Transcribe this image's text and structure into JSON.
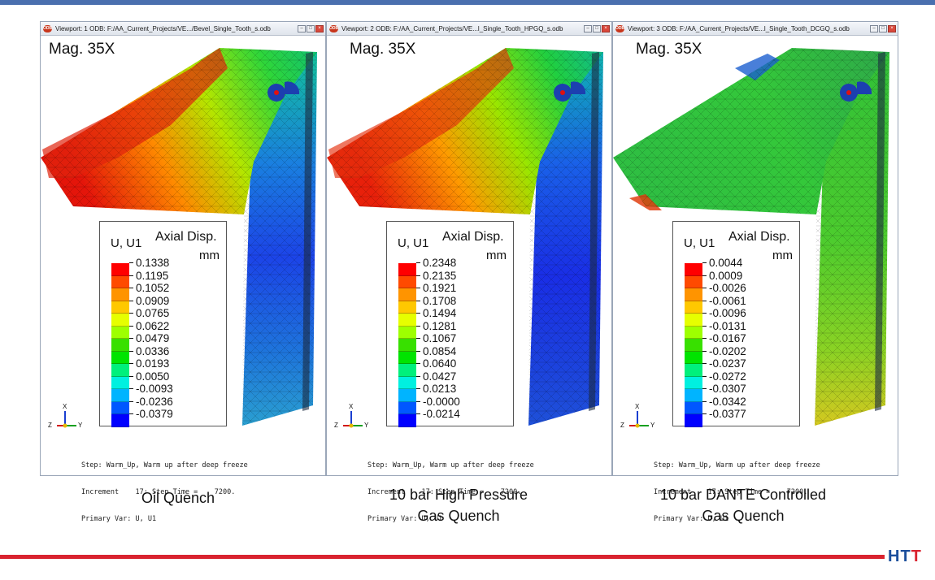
{
  "viewports": [
    {
      "title": "Viewport: 1   ODB: F:/AA_Current_Projects/VE.../Bevel_Single_Tooth_s.odb",
      "magnification": "Mag. 35X",
      "legend": {
        "variable": "U, U1",
        "title": "Axial Disp.",
        "unit": "mm",
        "values": [
          "0.1338",
          "0.1195",
          "0.1052",
          "0.0909",
          "0.0765",
          "0.0622",
          "0.0479",
          "0.0336",
          "0.0193",
          "0.0050",
          "-0.0093",
          "-0.0236",
          "-0.0379"
        ]
      },
      "step_info": [
        "Step: Warm_Up, Warm up after deep freeze",
        "Increment    17: Step Time =    7200.",
        "Primary Var: U, U1"
      ],
      "caption": [
        "Oil Quench"
      ]
    },
    {
      "title": "Viewport: 2   ODB: F:/AA_Current_Projects/VE...l_Single_Tooth_HPGQ_s.odb",
      "magnification": "Mag. 35X",
      "legend": {
        "variable": "U, U1",
        "title": "Axial Disp.",
        "unit": "mm",
        "values": [
          "0.2348",
          "0.2135",
          "0.1921",
          "0.1708",
          "0.1494",
          "0.1281",
          "0.1067",
          "0.0854",
          "0.0640",
          "0.0427",
          "0.0213",
          "-0.0000",
          "-0.0214"
        ]
      },
      "step_info": [
        "Step: Warm_Up, Warm up after deep freeze",
        "Increment    17: Step Time =    7200.",
        "Primary Var: U, U1"
      ],
      "caption": [
        "10 bar High Pressure",
        "Gas Quench"
      ]
    },
    {
      "title": "Viewport: 3   ODB: F:/AA_Current_Projects/VE...l_Single_Tooth_DCGQ_s.odb",
      "magnification": "Mag. 35X",
      "legend": {
        "variable": "U, U1",
        "title": "Axial Disp.",
        "unit": "mm",
        "values": [
          "0.0044",
          "0.0009",
          "-0.0026",
          "-0.0061",
          "-0.0096",
          "-0.0131",
          "-0.0167",
          "-0.0202",
          "-0.0237",
          "-0.0272",
          "-0.0307",
          "-0.0342",
          "-0.0377"
        ]
      },
      "step_info": [
        "Step: Warm_Up, Warm up after deep freeze",
        "Increment    17: Step Time =    7200.",
        "Primary Var: U, U1"
      ],
      "caption": [
        "10 bar DANTE Controlled",
        "Gas Quench"
      ]
    }
  ],
  "triad": {
    "x": "X",
    "y": "Y",
    "z": "Z"
  },
  "window_buttons": {
    "minimize": "–",
    "maximize": "□",
    "close": "×"
  },
  "odb_icon_text": "ODB",
  "logo": {
    "part1": "HT",
    "part2": "T"
  },
  "legend_colors": [
    "#ff0000",
    "#ff4a00",
    "#ff9400",
    "#ffc800",
    "#e6ff00",
    "#9eff00",
    "#38e000",
    "#00e400",
    "#00f07c",
    "#00f0e0",
    "#00b4ff",
    "#0058ff",
    "#0000ff"
  ],
  "colors": {
    "top_rule": "#4a6fae",
    "bottom_rule": "#d9232f",
    "logo_blue": "#1c4f9c",
    "logo_red": "#d9232f"
  }
}
